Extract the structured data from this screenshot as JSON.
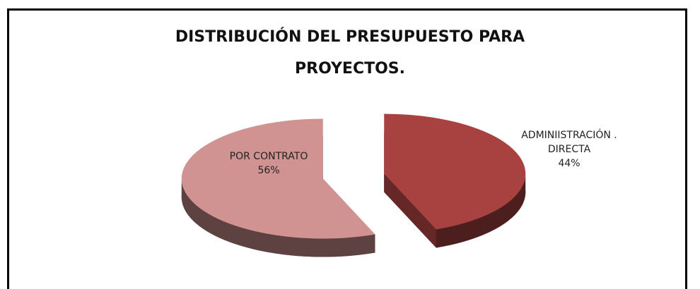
{
  "chart_data": {
    "type": "pie",
    "title": "DISTRIBUCIÓN DEL PRESUPUESTO PARA PROYECTOS.",
    "categories": [
      "POR CONTRATO",
      "ADMINIISTRACIÓN . DIRECTA"
    ],
    "values": [
      56,
      44
    ],
    "value_labels": [
      "56%",
      "44%"
    ],
    "colors": [
      "#d09392",
      "#a84241"
    ]
  }
}
